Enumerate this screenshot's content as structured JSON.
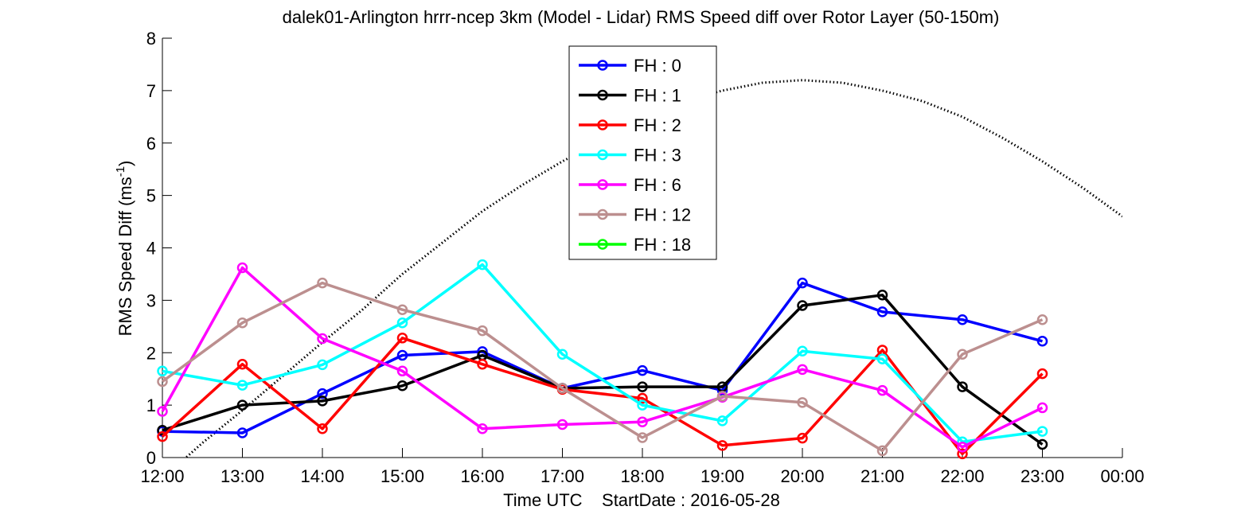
{
  "chart_data": {
    "type": "line",
    "title": "dalek01-Arlington hrrr-ncep 3km (Model - Lidar) RMS Speed diff over Rotor Layer (50-150m)",
    "xlabel": "Time UTC    StartDate : 2016-05-28",
    "ylabel_main": "RMS Speed Diff (ms",
    "ylabel_sup": "-1",
    "ylabel_close": ")",
    "ylim": [
      0,
      8
    ],
    "yticks": [
      "0",
      "1",
      "2",
      "3",
      "4",
      "5",
      "6",
      "7",
      "8"
    ],
    "x_ticks": [
      "12:00",
      "13:00",
      "14:00",
      "15:00",
      "16:00",
      "17:00",
      "18:00",
      "19:00",
      "20:00",
      "21:00",
      "22:00",
      "23:00",
      "00:00"
    ],
    "grid": false,
    "legend_position": "top-center",
    "series": [
      {
        "name": "FH : 0",
        "color": "#0000ff",
        "values": [
          0.5,
          0.47,
          1.22,
          1.95,
          2.02,
          1.32,
          1.66,
          1.28,
          3.33,
          2.78,
          2.63,
          2.22
        ]
      },
      {
        "name": "FH : 1",
        "color": "#000000",
        "values": [
          0.52,
          1.0,
          1.08,
          1.37,
          1.95,
          1.32,
          1.35,
          1.35,
          2.9,
          3.1,
          1.35,
          0.25
        ]
      },
      {
        "name": "FH : 2",
        "color": "#ff0000",
        "values": [
          0.4,
          1.78,
          0.55,
          2.28,
          1.78,
          1.3,
          1.13,
          0.23,
          0.37,
          2.05,
          0.07,
          1.6
        ]
      },
      {
        "name": "FH : 3",
        "color": "#00ffff",
        "values": [
          1.65,
          1.38,
          1.77,
          2.57,
          3.68,
          1.97,
          1.0,
          0.7,
          2.03,
          1.88,
          0.3,
          0.5
        ]
      },
      {
        "name": "FH : 6",
        "color": "#ff00ff",
        "values": [
          0.88,
          3.62,
          2.27,
          1.65,
          0.55,
          0.63,
          0.68,
          1.15,
          1.68,
          1.28,
          0.2,
          0.95
        ]
      },
      {
        "name": "FH : 12",
        "color": "#bc8f8f",
        "values": [
          1.45,
          2.57,
          3.33,
          2.82,
          2.42,
          1.32,
          0.38,
          1.17,
          1.05,
          0.13,
          1.97,
          2.63
        ]
      },
      {
        "name": "FH : 18",
        "color": "#00ff00",
        "values": []
      }
    ],
    "reference_curve": {
      "style": "dotted",
      "color": "#000000",
      "x": [
        0.0,
        0.5,
        1.0,
        1.5,
        2.0,
        2.5,
        3.0,
        3.5,
        4.0,
        4.5,
        5.0,
        5.5,
        6.0,
        6.5,
        7.0,
        7.5,
        8.0,
        8.5,
        9.0,
        9.5,
        10.0,
        10.5,
        11.0,
        11.5,
        12.0
      ],
      "y": [
        -0.4,
        0.28,
        0.9,
        1.55,
        2.2,
        2.82,
        3.5,
        4.1,
        4.7,
        5.2,
        5.65,
        6.05,
        6.45,
        6.8,
        7.0,
        7.15,
        7.2,
        7.15,
        7.0,
        6.8,
        6.5,
        6.1,
        5.65,
        5.15,
        4.6
      ]
    }
  }
}
